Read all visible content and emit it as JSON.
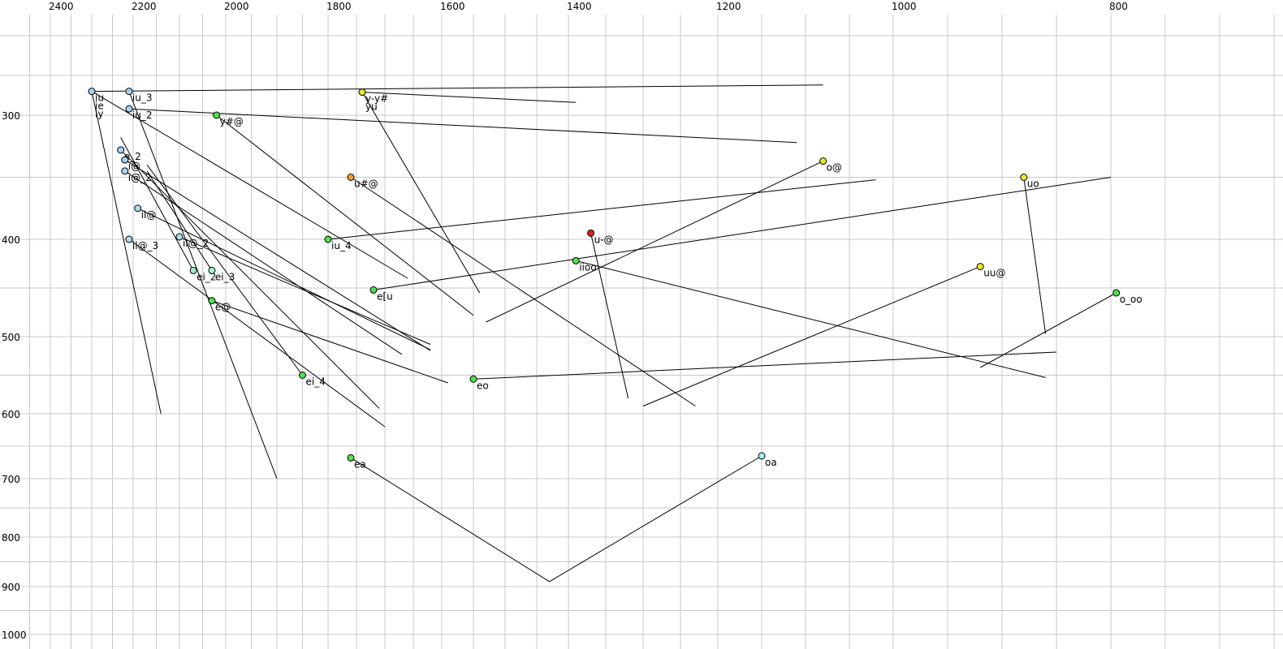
{
  "chart_data": {
    "type": "scatter",
    "x_axis": {
      "reversed": true,
      "ticks": [
        2400,
        2200,
        2000,
        1800,
        1600,
        1400,
        1200,
        1000,
        800
      ]
    },
    "y_axis": {
      "reversed": true,
      "ticks": [
        300,
        400,
        500,
        600,
        700,
        800,
        900,
        1000
      ]
    },
    "grid": true,
    "points": [
      {
        "label": "iu",
        "x": 2300,
        "y": 270,
        "color": "#a8d0f0",
        "traj": [
          [
            2300,
            270
          ],
          [
            1080,
            262
          ]
        ]
      },
      {
        "label": "ie",
        "x": 2300,
        "y": 270,
        "color": "#a8d0f0",
        "traj": [
          [
            2300,
            270
          ],
          [
            2140,
            600
          ]
        ]
      },
      {
        "label": "iy",
        "x": 2300,
        "y": 270,
        "color": "#a8d0f0",
        "traj": [
          [
            2300,
            270
          ],
          [
            1660,
            440
          ]
        ]
      },
      {
        "label": "iu_3",
        "x": 2210,
        "y": 270,
        "color": "#a8d0f0",
        "traj": [
          [
            2210,
            270
          ],
          [
            1900,
            700
          ]
        ]
      },
      {
        "label": "iu_2",
        "x": 2210,
        "y": 292,
        "color": "#a8d0f0",
        "traj": [
          [
            2210,
            292
          ],
          [
            1110,
            322
          ]
        ]
      },
      {
        "label": "e_2",
        "x": 2230,
        "y": 328,
        "color": "#a8d0f0",
        "traj": [
          [
            2230,
            328
          ],
          [
            1710,
            593
          ]
        ]
      },
      {
        "label": "i@",
        "x": 2220,
        "y": 336,
        "color": "#a8d0f0",
        "traj": [
          [
            2220,
            336
          ],
          [
            1620,
            518
          ]
        ]
      },
      {
        "label": "i@_2",
        "x": 2220,
        "y": 345,
        "color": "#a8d0f0",
        "traj": [
          [
            2220,
            345
          ],
          [
            1670,
            523
          ]
        ]
      },
      {
        "label": "il@",
        "x": 2190,
        "y": 375,
        "color": "#a8e0f0",
        "traj": [
          [
            2190,
            375
          ],
          [
            1620,
            517
          ]
        ]
      },
      {
        "label": "il@_3",
        "x": 2210,
        "y": 400,
        "color": "#a8e0f0",
        "traj": [
          [
            2210,
            400
          ],
          [
            1700,
            620
          ]
        ]
      },
      {
        "label": "il@_2",
        "x": 2100,
        "y": 398,
        "color": "#a8e0f0",
        "traj": [
          [
            2100,
            398
          ],
          [
            1620,
            510
          ]
        ]
      },
      {
        "label": "ei_2",
        "x": 2070,
        "y": 432,
        "color": "#a0f0c8",
        "traj": [
          [
            2070,
            432
          ],
          [
            2230,
            318
          ]
        ]
      },
      {
        "label": "ei_3",
        "x": 2030,
        "y": 432,
        "color": "#a0f0c8",
        "traj": [
          [
            2030,
            432
          ],
          [
            2170,
            345
          ]
        ]
      },
      {
        "label": "e@",
        "x": 2030,
        "y": 463,
        "color": "#50e050",
        "traj": [
          [
            2030,
            463
          ],
          [
            1590,
            560
          ]
        ]
      },
      {
        "label": "ei_4",
        "x": 1850,
        "y": 550,
        "color": "#50e050",
        "traj": [
          [
            1850,
            550
          ],
          [
            2170,
            340
          ]
        ]
      },
      {
        "label": "y#@",
        "x": 2020,
        "y": 300,
        "color": "#50e050",
        "traj": [
          [
            2020,
            300
          ],
          [
            1550,
            478
          ]
        ]
      },
      {
        "label": "y-y#",
        "x": 1740,
        "y": 271,
        "color": "#e8e830",
        "traj": [
          [
            1740,
            271
          ],
          [
            1390,
            284
          ]
        ]
      },
      {
        "label": "yu",
        "x": 1740,
        "y": 271,
        "color": "#e8e830",
        "traj": [
          [
            1740,
            271
          ],
          [
            1540,
            455
          ]
        ]
      },
      {
        "label": "u#@",
        "x": 1760,
        "y": 350,
        "color": "#f0a030",
        "traj": [
          [
            1760,
            350
          ],
          [
            1230,
            590
          ]
        ]
      },
      {
        "label": "iu_4",
        "x": 1800,
        "y": 400,
        "color": "#50e050",
        "traj": [
          [
            1800,
            400
          ],
          [
            1020,
            352
          ]
        ]
      },
      {
        "label": "e[u",
        "x": 1720,
        "y": 452,
        "color": "#50e050",
        "traj": [
          [
            1720,
            452
          ],
          [
            800,
            350
          ]
        ]
      },
      {
        "label": "eo",
        "x": 1550,
        "y": 555,
        "color": "#50e050",
        "traj": [
          [
            1550,
            555
          ],
          [
            850,
            520
          ]
        ]
      },
      {
        "label": "ea",
        "x": 1760,
        "y": 668,
        "color": "#50e050",
        "traj": [
          [
            1760,
            668
          ],
          [
            1430,
            890
          ]
        ]
      },
      {
        "label": "u-@",
        "x": 1370,
        "y": 395,
        "color": "#e02020",
        "traj": [
          [
            1370,
            395
          ],
          [
            1320,
            580
          ]
        ]
      },
      {
        "label": "iioo",
        "x": 1390,
        "y": 422,
        "color": "#50e050",
        "traj": [
          [
            1390,
            422
          ],
          [
            860,
            553
          ]
        ]
      },
      {
        "label": "o@",
        "x": 1080,
        "y": 337,
        "color": "#e8e830",
        "traj": [
          [
            1080,
            337
          ],
          [
            1530,
            485
          ]
        ]
      },
      {
        "label": "uu@",
        "x": 920,
        "y": 428,
        "color": "#e8e830",
        "traj": [
          [
            920,
            428
          ],
          [
            1300,
            590
          ]
        ]
      },
      {
        "label": "uo",
        "x": 880,
        "y": 350,
        "color": "#e8e830",
        "traj": [
          [
            880,
            350
          ],
          [
            860,
            497
          ]
        ]
      },
      {
        "label": "o_oo",
        "x": 795,
        "y": 455,
        "color": "#50e050",
        "traj": [
          [
            795,
            455
          ],
          [
            920,
            540
          ]
        ]
      },
      {
        "label": "oa",
        "x": 1150,
        "y": 665,
        "color": "#a0f0f0",
        "traj": [
          [
            1150,
            665
          ],
          [
            1430,
            890
          ]
        ]
      }
    ]
  }
}
